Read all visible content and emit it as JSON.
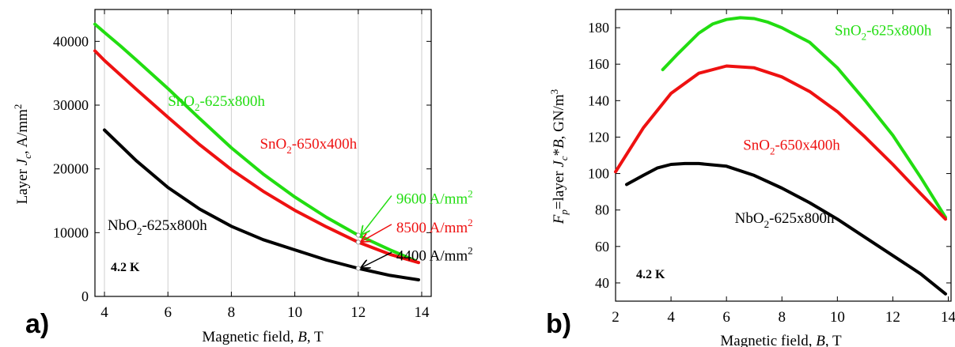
{
  "chart_data": [
    {
      "type": "line",
      "panel_label": "a)",
      "xlabel": "Magnetic field, B, T",
      "ylabel": "Layer Jc, A/mm2",
      "xlim": [
        3.7,
        14.3
      ],
      "ylim": [
        0,
        45000
      ],
      "xticks": [
        4,
        6,
        8,
        10,
        12,
        14
      ],
      "yticks": [
        0,
        10000,
        20000,
        30000,
        40000
      ],
      "xtick_labels": [
        "4",
        "6",
        "8",
        "10",
        "12",
        "14"
      ],
      "ytick_labels": [
        "0",
        "10000",
        "20000",
        "30000",
        "40000"
      ],
      "grid": "vertical",
      "temperature_label": "4.2 K",
      "series": [
        {
          "name": "SnO2-625x800h",
          "color": "#22dd11",
          "x": [
            3.7,
            4.0,
            4.5,
            5.0,
            6.0,
            7.0,
            8.0,
            9.0,
            10.0,
            11.0,
            12.0,
            13.0,
            13.8
          ],
          "y": [
            42700,
            41400,
            39300,
            37100,
            32600,
            27900,
            23300,
            19200,
            15600,
            12400,
            9600,
            7300,
            5600
          ]
        },
        {
          "name": "SnO2-650x400h",
          "color": "#ee1111",
          "x": [
            3.7,
            4.0,
            5.0,
            6.0,
            7.0,
            8.0,
            9.0,
            10.0,
            11.0,
            12.0,
            13.0,
            13.9
          ],
          "y": [
            38500,
            37000,
            32500,
            28100,
            23800,
            19900,
            16500,
            13500,
            10900,
            8500,
            6600,
            5300
          ]
        },
        {
          "name": "NbO2-625x800h",
          "color": "#000000",
          "x": [
            4.0,
            5.0,
            6.0,
            7.0,
            8.0,
            9.0,
            10.0,
            11.0,
            12.0,
            13.0,
            13.9
          ],
          "y": [
            26100,
            21300,
            17100,
            13700,
            11000,
            8900,
            7300,
            5700,
            4400,
            3300,
            2600
          ]
        }
      ],
      "labels": [
        {
          "text": "SnO2-625x800h",
          "color": "#22dd11",
          "x": 6.0,
          "y": 29900
        },
        {
          "text": "SnO2-650x400h",
          "color": "#ee1111",
          "x": 8.9,
          "y": 23200
        },
        {
          "text": "NbO2-625x800h",
          "color": "#000000",
          "x": 4.1,
          "y": 10400
        }
      ],
      "annotations": [
        {
          "text": "9600 A/mm2",
          "color": "#22dd11",
          "at": [
            12,
            9600
          ],
          "text_pos": [
            13.2,
            15300
          ]
        },
        {
          "text": "8500 A/mm2",
          "color": "#ee1111",
          "at": [
            12,
            8500
          ],
          "text_pos": [
            13.2,
            10800
          ]
        },
        {
          "text": "4400 A/mm2",
          "color": "#000000",
          "at": [
            12,
            4400
          ],
          "text_pos": [
            13.2,
            6400
          ]
        }
      ]
    },
    {
      "type": "line",
      "panel_label": "b)",
      "xlabel": "Magnetic field, B, T",
      "ylabel": "Fp=layer Jc*B, GN/m3",
      "xlim": [
        2,
        14.1
      ],
      "ylim": [
        30,
        190
      ],
      "xticks": [
        2,
        4,
        6,
        8,
        10,
        12,
        14
      ],
      "yticks": [
        40,
        60,
        80,
        100,
        120,
        140,
        160,
        180
      ],
      "xtick_labels": [
        "2",
        "4",
        "6",
        "8",
        "10",
        "12",
        "14"
      ],
      "ytick_labels": [
        "40",
        "60",
        "80",
        "100",
        "120",
        "140",
        "160",
        "180"
      ],
      "grid": "none",
      "temperature_label": "4.2 K",
      "series": [
        {
          "name": "SnO2-625x800h",
          "color": "#22dd11",
          "x": [
            3.7,
            4.2,
            5.0,
            5.5,
            6.0,
            6.5,
            7.0,
            7.5,
            8.0,
            9.0,
            10.0,
            11.0,
            12.0,
            13.0,
            13.9
          ],
          "y": [
            157,
            165,
            177,
            182,
            184.5,
            185.5,
            185,
            183,
            180,
            172,
            158,
            140,
            121,
            98,
            76
          ]
        },
        {
          "name": "SnO2-650x400h",
          "color": "#ee1111",
          "x": [
            2.0,
            3.0,
            4.0,
            5.0,
            6.0,
            7.0,
            8.0,
            9.0,
            10.0,
            11.0,
            12.0,
            13.0,
            13.9
          ],
          "y": [
            101,
            125,
            144,
            155,
            159,
            158,
            153,
            145,
            134,
            120,
            105,
            89,
            75
          ]
        },
        {
          "name": "NbO2-625x800h",
          "color": "#000000",
          "x": [
            2.4,
            3.0,
            3.5,
            4.0,
            4.5,
            5.0,
            6.0,
            7.0,
            8.0,
            9.0,
            10.0,
            11.0,
            12.0,
            13.0,
            13.9
          ],
          "y": [
            94,
            99,
            103,
            105,
            105.5,
            105.5,
            104,
            99,
            92,
            84,
            75,
            65,
            55,
            45,
            34
          ]
        }
      ],
      "labels": [
        {
          "text": "SnO2-625x800h",
          "color": "#22dd11",
          "x": 9.9,
          "y": 176
        },
        {
          "text": "SnO2-650x400h",
          "color": "#ee1111",
          "x": 6.6,
          "y": 113
        },
        {
          "text": "NbO2-625x800h",
          "color": "#000000",
          "x": 6.3,
          "y": 73
        }
      ],
      "annotations": []
    }
  ]
}
